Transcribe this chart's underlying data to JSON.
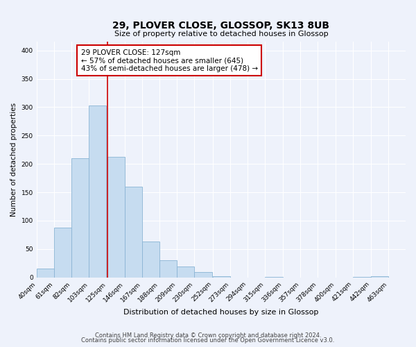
{
  "title": "29, PLOVER CLOSE, GLOSSOP, SK13 8UB",
  "subtitle": "Size of property relative to detached houses in Glossop",
  "xlabel": "Distribution of detached houses by size in Glossop",
  "ylabel": "Number of detached properties",
  "bar_values": [
    16,
    88,
    210,
    303,
    213,
    160,
    63,
    30,
    19,
    9,
    2,
    0,
    0,
    1,
    0,
    0,
    0,
    0,
    1,
    2
  ],
  "bin_labels": [
    "40sqm",
    "61sqm",
    "82sqm",
    "103sqm",
    "125sqm",
    "146sqm",
    "167sqm",
    "188sqm",
    "209sqm",
    "230sqm",
    "252sqm",
    "273sqm",
    "294sqm",
    "315sqm",
    "336sqm",
    "357sqm",
    "378sqm",
    "400sqm",
    "421sqm",
    "442sqm",
    "463sqm"
  ],
  "bin_edges": [
    40,
    61,
    82,
    103,
    125,
    146,
    167,
    188,
    209,
    230,
    252,
    273,
    294,
    315,
    336,
    357,
    378,
    400,
    421,
    442,
    463
  ],
  "bar_color": "#c6dcf0",
  "bar_edge_color": "#8ab4d4",
  "vline_x": 125,
  "vline_color": "#cc0000",
  "ylim": [
    0,
    415
  ],
  "yticks": [
    0,
    50,
    100,
    150,
    200,
    250,
    300,
    350,
    400
  ],
  "annotation_title": "29 PLOVER CLOSE: 127sqm",
  "annotation_line1": "← 57% of detached houses are smaller (645)",
  "annotation_line2": "43% of semi-detached houses are larger (478) →",
  "annotation_box_color": "#ffffff",
  "annotation_box_edge": "#cc0000",
  "footer_line1": "Contains HM Land Registry data © Crown copyright and database right 2024.",
  "footer_line2": "Contains public sector information licensed under the Open Government Licence v3.0.",
  "background_color": "#eef2fb",
  "grid_color": "#ffffff",
  "title_fontsize": 10,
  "subtitle_fontsize": 8,
  "ylabel_fontsize": 7.5,
  "xlabel_fontsize": 8,
  "tick_fontsize": 6.5,
  "annotation_fontsize": 7.5,
  "footer_fontsize": 6
}
